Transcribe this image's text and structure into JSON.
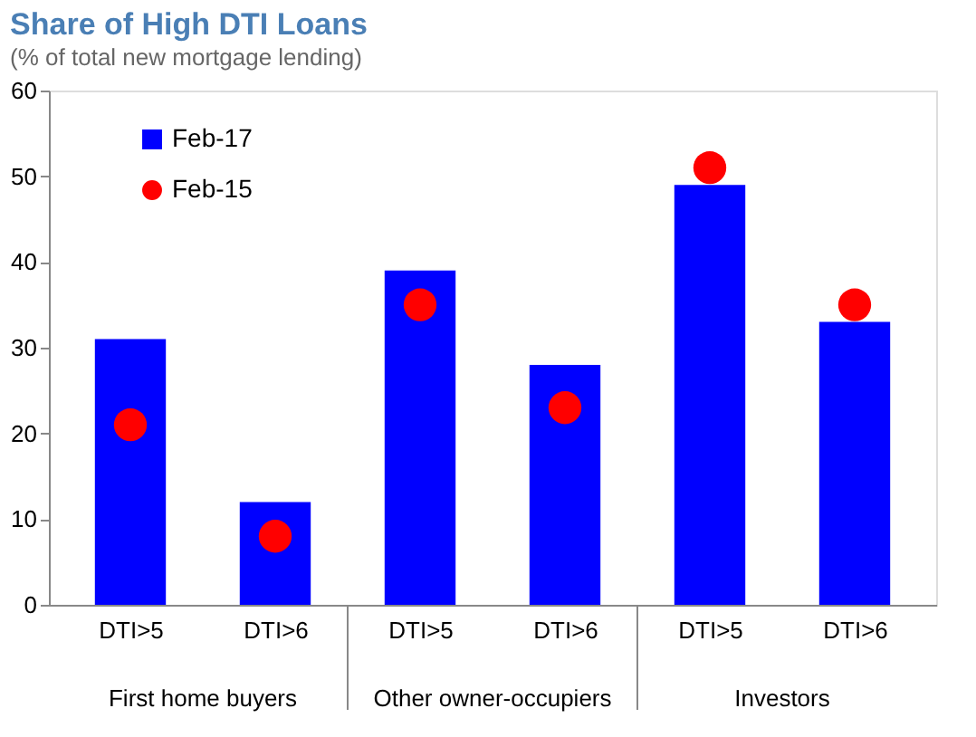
{
  "chart_data": {
    "type": "bar",
    "title": "Share of High DTI Loans",
    "subtitle": "(% of total new mortgage lending)",
    "categories": [
      "DTI>5",
      "DTI>6",
      "DTI>5",
      "DTI>6",
      "DTI>5",
      "DTI>6"
    ],
    "series": [
      {
        "name": "Feb-17",
        "color": "#0000ff",
        "values": [
          31,
          12,
          39,
          28,
          49,
          33
        ]
      },
      {
        "name": "Feb-15",
        "type": "scatter",
        "color": "#ff0000",
        "values": [
          21,
          8,
          35,
          23,
          51,
          35
        ]
      }
    ],
    "annotations": [
      "First home buyers",
      "Other owner-occupiers",
      "Investors"
    ],
    "ylim": [
      0,
      60
    ],
    "yticks": [
      0,
      10,
      20,
      30,
      40,
      50,
      60
    ],
    "grid": false,
    "legend": "top left",
    "marker": "circle"
  }
}
